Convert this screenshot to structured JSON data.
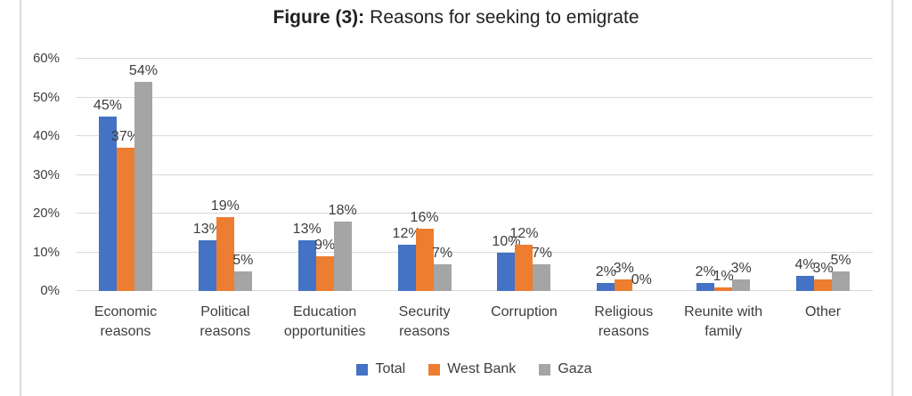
{
  "figure": {
    "title_prefix": "Figure (3):",
    "title_text": "Reasons for seeking to emigrate"
  },
  "chart_data": {
    "type": "bar",
    "title": "Figure (3): Reasons for seeking to emigrate",
    "categories": [
      "Economic reasons",
      "Political reasons",
      "Education opportunities",
      "Security reasons",
      "Corruption",
      "Religious reasons",
      "Reunite with family",
      "Other"
    ],
    "series": [
      {
        "name": "Total",
        "color": "#4472C4",
        "values": [
          45,
          13,
          13,
          12,
          10,
          2,
          2,
          4
        ]
      },
      {
        "name": "West Bank",
        "color": "#ED7D31",
        "values": [
          37,
          19,
          9,
          16,
          12,
          3,
          1,
          3
        ]
      },
      {
        "name": "Gaza",
        "color": "#A5A5A5",
        "values": [
          54,
          5,
          18,
          7,
          7,
          0,
          3,
          5
        ]
      }
    ],
    "xlabel": "",
    "ylabel": "",
    "ylim": [
      0,
      60
    ],
    "y_ticks": [
      "0%",
      "10%",
      "20%",
      "30%",
      "40%",
      "50%",
      "60%"
    ],
    "value_suffix": "%",
    "grid": true,
    "legend_position": "bottom",
    "gridline_color": "#d9d9d9",
    "text_color": "#3d3d3d"
  }
}
